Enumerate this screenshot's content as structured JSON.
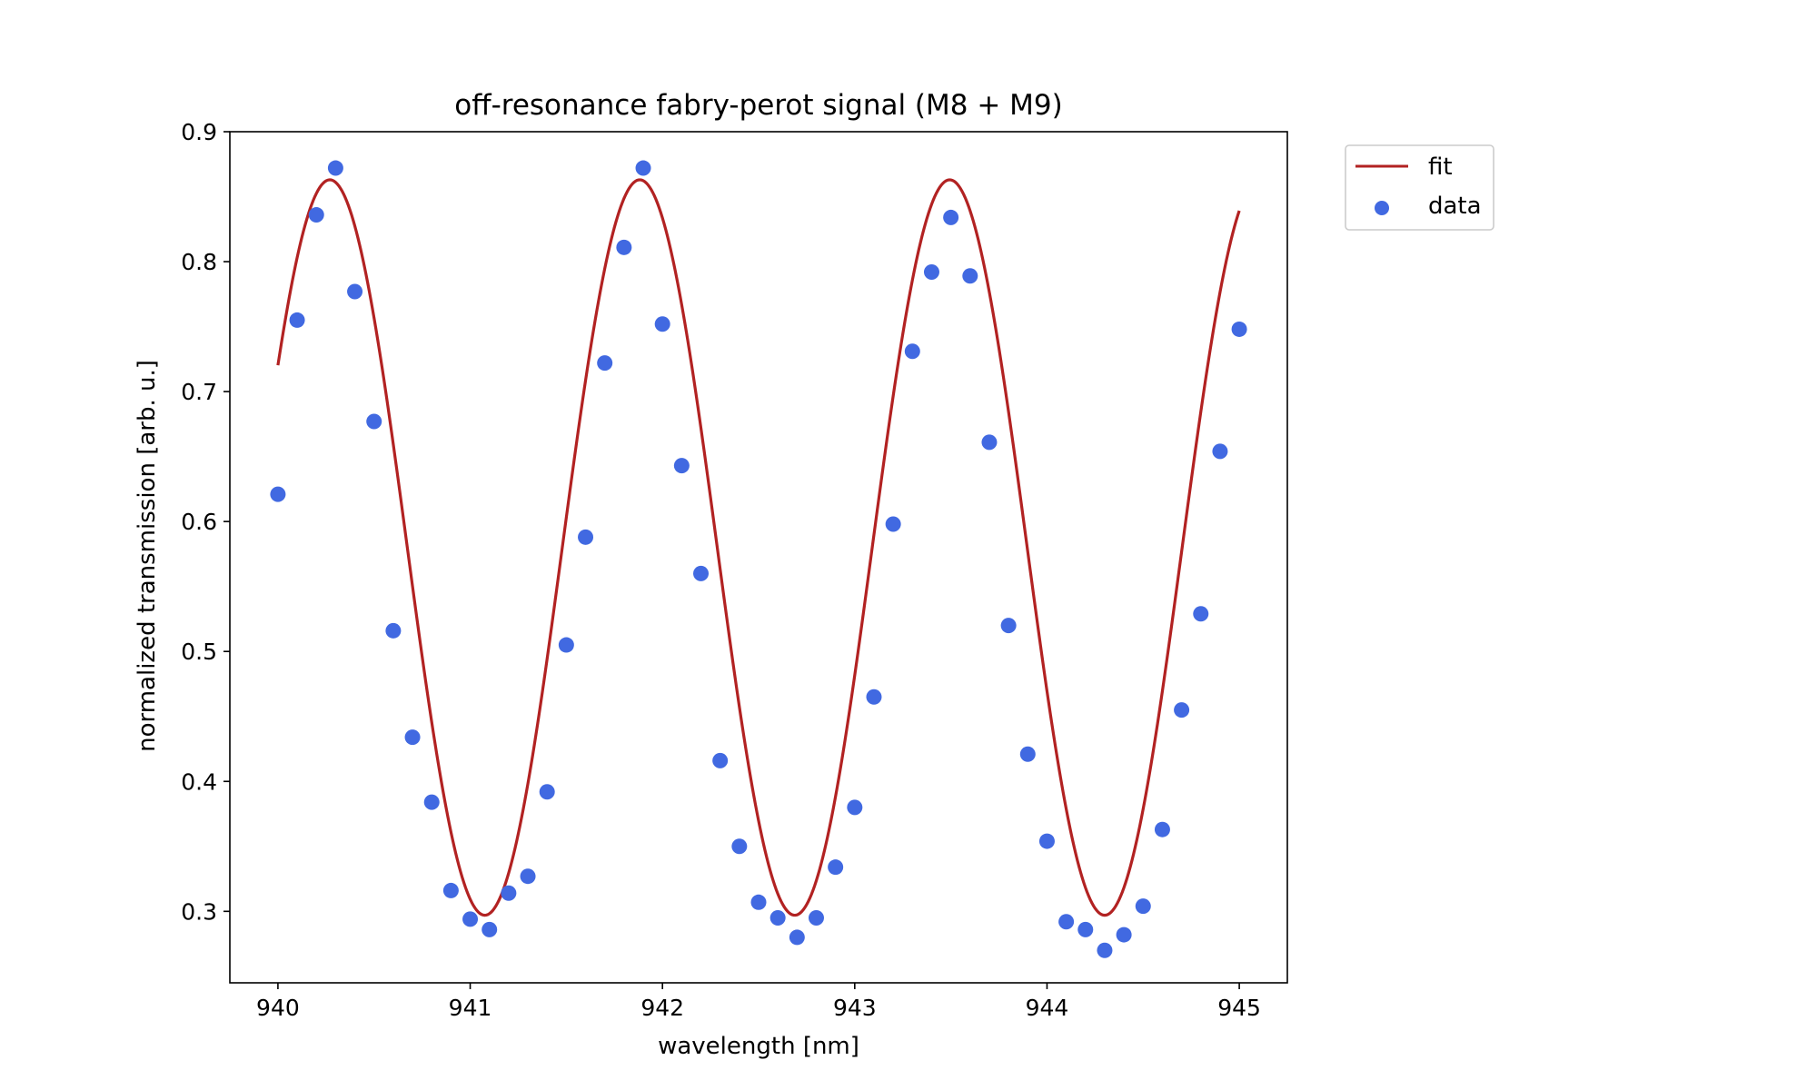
{
  "chart_data": {
    "type": "scatter",
    "title": "off-resonance fabry-perot signal (M8 + M9)",
    "xlabel": "wavelength [nm]",
    "ylabel": "normalized transmission [arb. u.]",
    "xlim": [
      939.75,
      945.25
    ],
    "ylim": [
      0.245,
      0.9
    ],
    "xticks": [
      940,
      941,
      942,
      943,
      944,
      945
    ],
    "yticks": [
      0.3,
      0.4,
      0.5,
      0.6,
      0.7,
      0.8,
      0.9
    ],
    "xtick_labels": [
      "940",
      "941",
      "942",
      "943",
      "944",
      "945"
    ],
    "ytick_labels": [
      "0.3",
      "0.4",
      "0.5",
      "0.6",
      "0.7",
      "0.8",
      "0.9"
    ],
    "grid": false,
    "legend_position": "outside-top-right",
    "series": [
      {
        "name": "fit",
        "kind": "line",
        "color": "#b22222",
        "x_range": [
          940.0,
          945.0
        ],
        "model": {
          "form": "offset + amplitude * cos(2*pi*(x - peak_position)/period)",
          "offset": 0.58,
          "amplitude": 0.283,
          "period": 1.612,
          "peak_position": 940.27
        }
      },
      {
        "name": "data",
        "kind": "scatter",
        "color": "#4169e1",
        "x": [
          940.0,
          940.1,
          940.2,
          940.3,
          940.4,
          940.5,
          940.6,
          940.7,
          940.8,
          940.9,
          941.0,
          941.1,
          941.2,
          941.3,
          941.4,
          941.5,
          941.6,
          941.7,
          941.8,
          941.9,
          942.0,
          942.1,
          942.2,
          942.3,
          942.4,
          942.5,
          942.6,
          942.7,
          942.8,
          942.9,
          943.0,
          943.1,
          943.2,
          943.3,
          943.4,
          943.5,
          943.6,
          943.7,
          943.8,
          943.9,
          944.0,
          944.1,
          944.2,
          944.3,
          944.4,
          944.5,
          944.6,
          944.7,
          944.8,
          944.9,
          945.0
        ],
        "y": [
          0.621,
          0.755,
          0.836,
          0.872,
          0.777,
          0.677,
          0.516,
          0.434,
          0.384,
          0.316,
          0.294,
          0.286,
          0.314,
          0.327,
          0.392,
          0.505,
          0.588,
          0.722,
          0.811,
          0.872,
          0.752,
          0.643,
          0.56,
          0.416,
          0.35,
          0.307,
          0.295,
          0.28,
          0.295,
          0.334,
          0.38,
          0.465,
          0.598,
          0.731,
          0.792,
          0.834,
          0.789,
          0.661,
          0.52,
          0.421,
          0.354,
          0.292,
          0.286,
          0.27,
          0.282,
          0.304,
          0.363,
          0.455,
          0.529,
          0.654,
          0.748
        ]
      }
    ]
  }
}
